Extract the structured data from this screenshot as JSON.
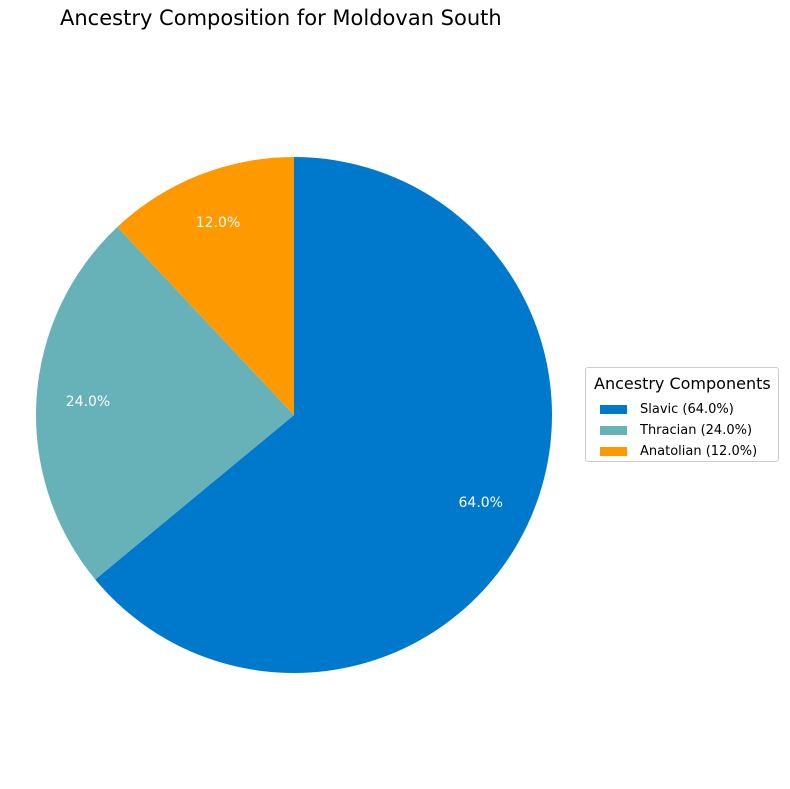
{
  "chart_data": {
    "type": "pie",
    "title": "Ancestry Composition for Moldovan South",
    "legend_title": "Ancestry Components",
    "legend_placement": "right",
    "start_angle_deg": 90,
    "direction": "clockwise",
    "slices": [
      {
        "label": "Slavic",
        "value": 64.0,
        "pct_label": "64.0%",
        "legend_label": "Slavic (64.0%)",
        "color": "#0079cc"
      },
      {
        "label": "Thracian",
        "value": 24.0,
        "pct_label": "24.0%",
        "legend_label": "Thracian (24.0%)",
        "color": "#66b2b8"
      },
      {
        "label": "Anatolian",
        "value": 12.0,
        "pct_label": "12.0%",
        "legend_label": "Anatolian (12.0%)",
        "color": "#ff9900"
      }
    ]
  }
}
